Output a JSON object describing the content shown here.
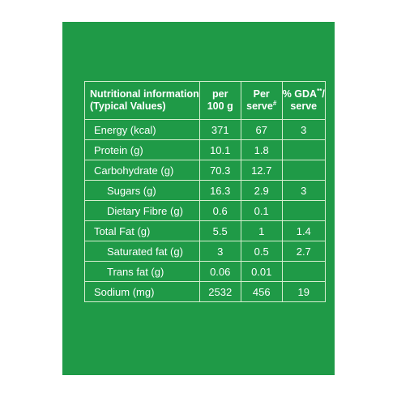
{
  "colors": {
    "panel_green": "#1f9a47",
    "text": "#ffffff",
    "border": "#d6eecf"
  },
  "header": {
    "info_line1": "Nutritional information",
    "info_line2": "(Typical Values)",
    "per100_line1": "per",
    "per100_line2": "100 g",
    "perserve_line1": "Per",
    "perserve_line2": "serve",
    "perserve_mark": "#",
    "gda_line1_prefix": "% GDA",
    "gda_mark": "**",
    "gda_line1_suffix": "/",
    "gda_line2": "serve"
  },
  "rows": [
    {
      "label": "Energy (kcal)",
      "per100": "371",
      "perserve": "67",
      "gda": "3"
    },
    {
      "label": "Protein (g)",
      "per100": "10.1",
      "perserve": "1.8",
      "gda": ""
    },
    {
      "label": "Carbohydrate (g)",
      "per100": "70.3",
      "perserve": "12.7",
      "gda": ""
    },
    {
      "label": "Sugars (g)",
      "per100": "16.3",
      "perserve": "2.9",
      "gda": "3"
    },
    {
      "label": "Dietary Fibre (g)",
      "per100": "0.6",
      "perserve": "0.1",
      "gda": ""
    },
    {
      "label": "Total Fat (g)",
      "per100": "5.5",
      "perserve": "1",
      "gda": "1.4"
    },
    {
      "label": "Saturated fat (g)",
      "per100": "3",
      "perserve": "0.5",
      "gda": "2.7"
    },
    {
      "label": "Trans fat (g)",
      "per100": "0.06",
      "perserve": "0.01",
      "gda": ""
    },
    {
      "label": "Sodium (mg)",
      "per100": "2532",
      "perserve": "456",
      "gda": "19"
    }
  ]
}
